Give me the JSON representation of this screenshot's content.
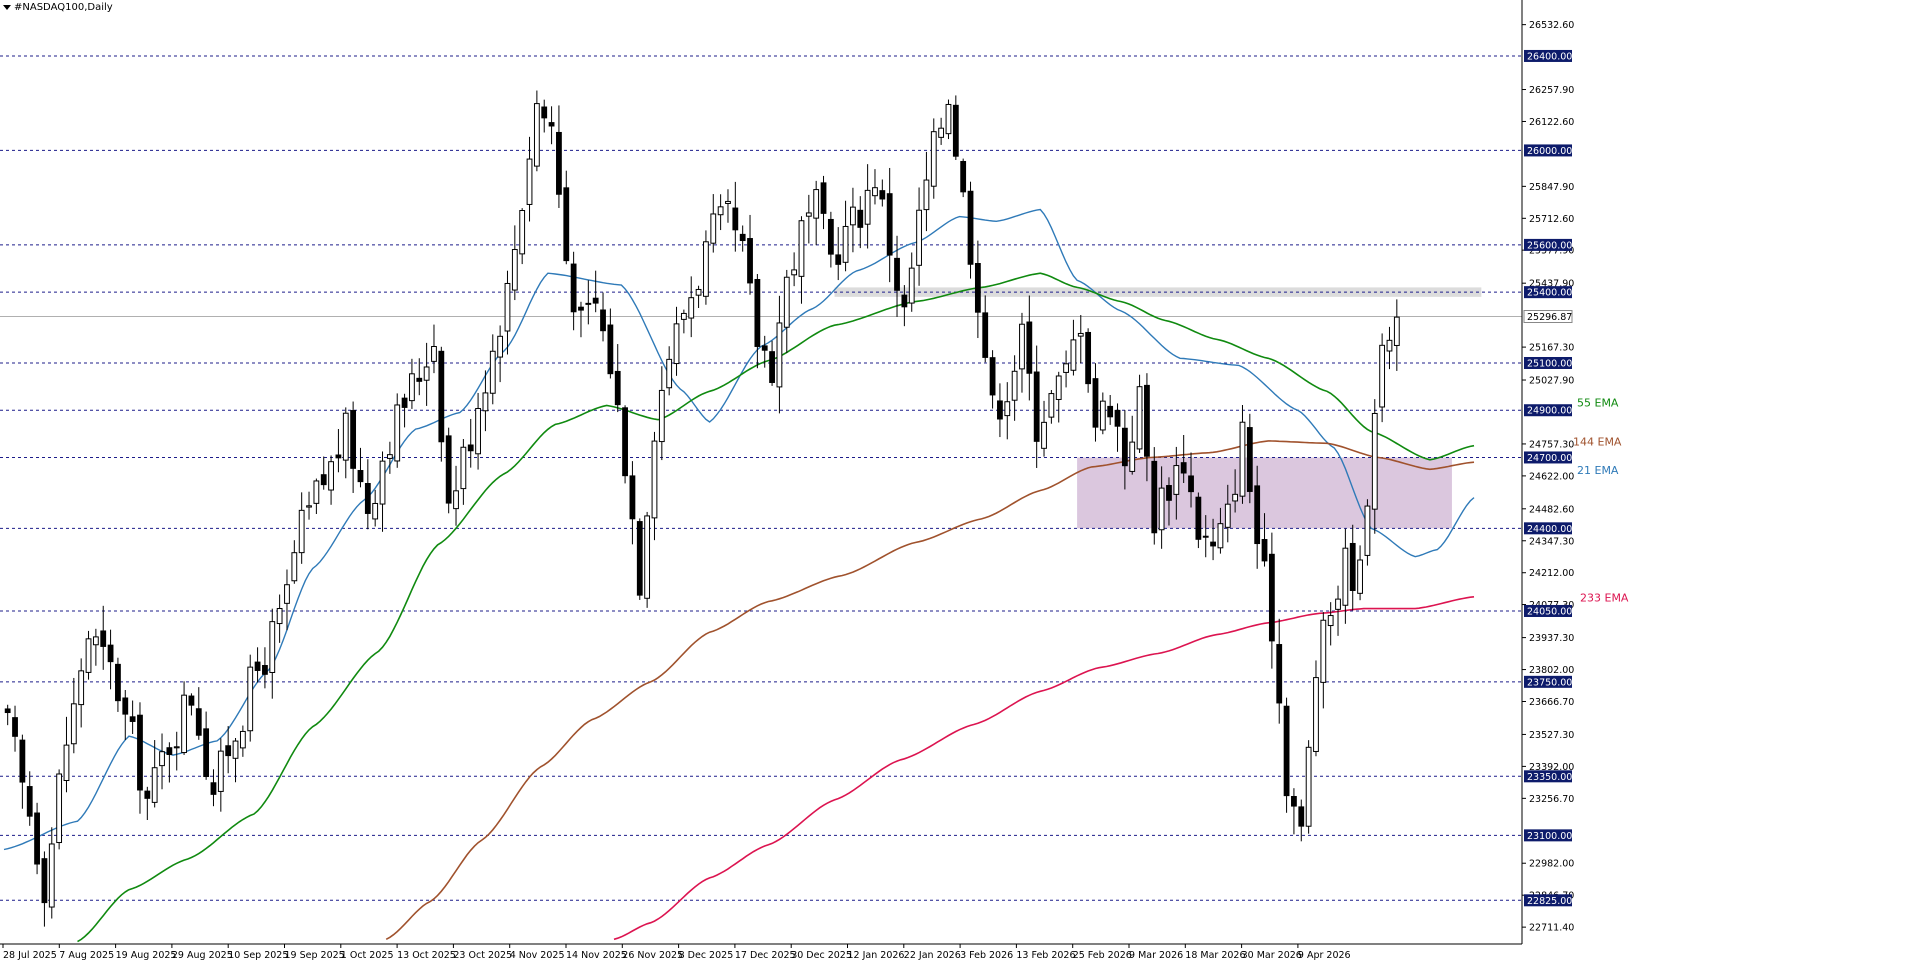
{
  "chart_title": "#NASDAQ100,Daily",
  "colors": {
    "background": "#ffffff",
    "level_line": "#1c1c8a",
    "level_label_bg": "#0d1b6b",
    "level_label_text": "#ffffff",
    "ema21": "#2f7ab8",
    "ema55": "#108a10",
    "ema144": "#a0522d",
    "ema233": "#dc1450",
    "candle_bull": "#ffffff",
    "candle_bear": "#000000",
    "zone_purple": "#d5bdd8",
    "zone_gray": "#d8d8d8",
    "axis_text": "#000000"
  },
  "chart_data": {
    "type": "candlestick",
    "symbol": "#NASDAQ100",
    "timeframe": "Daily",
    "ylim": [
      22640,
      26620
    ],
    "x_ticks": [
      "28 Jul 2025",
      "7 Aug 2025",
      "19 Aug 2025",
      "29 Aug 2025",
      "10 Sep 2025",
      "19 Sep 2025",
      "1 Oct 2025",
      "13 Oct 2025",
      "23 Oct 2025",
      "4 Nov 2025",
      "14 Nov 2025",
      "26 Nov 2025",
      "8 Dec 2025",
      "17 Dec 2025",
      "30 Dec 2025",
      "12 Jan 2026",
      "22 Jan 2026",
      "3 Feb 2026",
      "13 Feb 2026",
      "25 Feb 2026",
      "9 Mar 2026",
      "18 Mar 2026",
      "30 Mar 2026",
      "9 Apr 2026"
    ],
    "y_ticks": [
      "26532.60",
      "26257.90",
      "26122.60",
      "25847.90",
      "25712.60",
      "25577.90",
      "25437.90",
      "25167.30",
      "25027.90",
      "24757.30",
      "24622.00",
      "24482.60",
      "24347.30",
      "24212.00",
      "24077.30",
      "23937.30",
      "23802.00",
      "23666.70",
      "23527.30",
      "23392.00",
      "23256.70",
      "22982.00",
      "22846.70",
      "22711.40"
    ],
    "y_tick_values": [
      26532.6,
      26257.9,
      26122.6,
      25847.9,
      25712.6,
      25577.9,
      25437.9,
      25167.3,
      25027.9,
      24757.3,
      24622.0,
      24482.6,
      24347.3,
      24212.0,
      24077.3,
      23937.3,
      23802.0,
      23666.7,
      23527.3,
      23392.0,
      23256.7,
      22982.0,
      22846.7,
      22711.4
    ],
    "horizontal_levels": [
      {
        "label": "26400.00",
        "value": 26400
      },
      {
        "label": "26000.00",
        "value": 26000
      },
      {
        "label": "25600.00",
        "value": 25600
      },
      {
        "label": "25400.00",
        "value": 25400
      },
      {
        "label": "25100.00",
        "value": 25100
      },
      {
        "label": "24900.00",
        "value": 24900
      },
      {
        "label": "24700.00",
        "value": 24700
      },
      {
        "label": "24400.00",
        "value": 24400
      },
      {
        "label": "24050.00",
        "value": 24050
      },
      {
        "label": "23750.00",
        "value": 23750
      },
      {
        "label": "23350.00",
        "value": 23350
      },
      {
        "label": "23100.00",
        "value": 23100
      },
      {
        "label": "22825.00",
        "value": 22825
      }
    ],
    "current_price": {
      "label": "25296.87",
      "value": 25296.87
    },
    "zones": [
      {
        "name": "purple-zone",
        "bar_from": 146,
        "bar_to": 197,
        "price_from": 24400,
        "price_to": 24700
      },
      {
        "name": "gray-zone",
        "bar_from": 113,
        "bar_to": 201,
        "price_from": 25380,
        "price_to": 25420
      }
    ],
    "ema_labels": [
      {
        "text": "55 EMA",
        "value": 24915,
        "series": "ema55"
      },
      {
        "text": "144 EMA",
        "value": 24750,
        "series": "ema144"
      },
      {
        "text": "21 EMA",
        "value": 24630,
        "series": "ema21"
      },
      {
        "text": "233 EMA",
        "value": 24090,
        "series": "ema233"
      }
    ],
    "series": [
      {
        "name": "21 EMA",
        "key": "ema21",
        "anchors": [
          [
            0,
            23040
          ],
          [
            10,
            23160
          ],
          [
            17,
            23520
          ],
          [
            23,
            23440
          ],
          [
            29,
            23500
          ],
          [
            36,
            23800
          ],
          [
            42,
            24230
          ],
          [
            49,
            24520
          ],
          [
            56,
            24820
          ],
          [
            62,
            24890
          ],
          [
            68,
            25150
          ],
          [
            74,
            25480
          ],
          [
            84,
            25430
          ],
          [
            92,
            24990
          ],
          [
            96,
            24850
          ],
          [
            103,
            25170
          ],
          [
            110,
            25330
          ],
          [
            116,
            25490
          ],
          [
            124,
            25610
          ],
          [
            130,
            25720
          ],
          [
            135,
            25700
          ],
          [
            141,
            25750
          ],
          [
            146,
            25450
          ],
          [
            152,
            25320
          ],
          [
            160,
            25120
          ],
          [
            168,
            25090
          ],
          [
            176,
            24900
          ],
          [
            181,
            24740
          ],
          [
            186,
            24400
          ],
          [
            192,
            24280
          ],
          [
            195,
            24310
          ],
          [
            200,
            24530
          ]
        ]
      },
      {
        "name": "55 EMA",
        "key": "ema55",
        "anchors": [
          [
            10,
            22650
          ],
          [
            17,
            22870
          ],
          [
            25,
            23000
          ],
          [
            34,
            23190
          ],
          [
            42,
            23560
          ],
          [
            51,
            23880
          ],
          [
            59,
            24330
          ],
          [
            68,
            24630
          ],
          [
            75,
            24840
          ],
          [
            82,
            24920
          ],
          [
            89,
            24860
          ],
          [
            96,
            24980
          ],
          [
            104,
            25110
          ],
          [
            113,
            25260
          ],
          [
            124,
            25360
          ],
          [
            133,
            25420
          ],
          [
            141,
            25480
          ],
          [
            146,
            25420
          ],
          [
            152,
            25360
          ],
          [
            158,
            25280
          ],
          [
            165,
            25200
          ],
          [
            172,
            25120
          ],
          [
            180,
            24980
          ],
          [
            186,
            24810
          ],
          [
            194,
            24690
          ],
          [
            200,
            24750
          ]
        ]
      },
      {
        "name": "144 EMA",
        "key": "ema144",
        "anchors": [
          [
            52,
            22660
          ],
          [
            58,
            22820
          ],
          [
            65,
            23080
          ],
          [
            73,
            23390
          ],
          [
            80,
            23590
          ],
          [
            88,
            23750
          ],
          [
            96,
            23960
          ],
          [
            104,
            24090
          ],
          [
            114,
            24200
          ],
          [
            124,
            24340
          ],
          [
            133,
            24440
          ],
          [
            141,
            24560
          ],
          [
            148,
            24660
          ],
          [
            156,
            24700
          ],
          [
            164,
            24720
          ],
          [
            172,
            24770
          ],
          [
            180,
            24760
          ],
          [
            187,
            24700
          ],
          [
            194,
            24650
          ],
          [
            200,
            24680
          ]
        ]
      },
      {
        "name": "233 EMA",
        "key": "ema233",
        "anchors": [
          [
            83,
            22660
          ],
          [
            88,
            22730
          ],
          [
            96,
            22920
          ],
          [
            104,
            23060
          ],
          [
            113,
            23250
          ],
          [
            122,
            23420
          ],
          [
            132,
            23570
          ],
          [
            141,
            23710
          ],
          [
            149,
            23810
          ],
          [
            157,
            23870
          ],
          [
            165,
            23950
          ],
          [
            172,
            24000
          ],
          [
            179,
            24040
          ],
          [
            185,
            24060
          ],
          [
            192,
            24060
          ],
          [
            200,
            24110
          ]
        ]
      }
    ],
    "candles_note": "OHLC bars generated from anchor closes in data units",
    "close_anchors": [
      [
        0,
        23550
      ],
      [
        3,
        23200
      ],
      [
        5,
        22900
      ],
      [
        8,
        23500
      ],
      [
        11,
        23950
      ],
      [
        14,
        23800
      ],
      [
        17,
        23500
      ],
      [
        19,
        23250
      ],
      [
        22,
        23500
      ],
      [
        25,
        23700
      ],
      [
        28,
        23300
      ],
      [
        31,
        23550
      ],
      [
        34,
        23800
      ],
      [
        37,
        24000
      ],
      [
        40,
        24400
      ],
      [
        43,
        24600
      ],
      [
        46,
        24800
      ],
      [
        49,
        24500
      ],
      [
        52,
        24800
      ],
      [
        55,
        25000
      ],
      [
        58,
        25200
      ],
      [
        60,
        24500
      ],
      [
        62,
        24700
      ],
      [
        65,
        25050
      ],
      [
        68,
        25400
      ],
      [
        70,
        25800
      ],
      [
        72,
        26200
      ],
      [
        74,
        26100
      ],
      [
        76,
        25550
      ],
      [
        78,
        25250
      ],
      [
        80,
        25350
      ],
      [
        82,
        25100
      ],
      [
        84,
        24700
      ],
      [
        86,
        24200
      ],
      [
        88,
        24850
      ],
      [
        90,
        25150
      ],
      [
        93,
        25400
      ],
      [
        96,
        25650
      ],
      [
        98,
        25700
      ],
      [
        100,
        25550
      ],
      [
        102,
        25200
      ],
      [
        104,
        25100
      ],
      [
        106,
        25450
      ],
      [
        108,
        25650
      ],
      [
        110,
        25750
      ],
      [
        112,
        25550
      ],
      [
        114,
        25650
      ],
      [
        116,
        25750
      ],
      [
        118,
        25900
      ],
      [
        120,
        25600
      ],
      [
        122,
        25300
      ],
      [
        124,
        25700
      ],
      [
        126,
        26000
      ],
      [
        128,
        26250
      ],
      [
        130,
        25800
      ],
      [
        132,
        25400
      ],
      [
        134,
        24900
      ],
      [
        136,
        25000
      ],
      [
        138,
        25200
      ],
      [
        140,
        24850
      ],
      [
        142,
        24950
      ],
      [
        144,
        25050
      ],
      [
        146,
        25300
      ],
      [
        148,
        24850
      ],
      [
        150,
        24950
      ],
      [
        152,
        24700
      ],
      [
        154,
        24950
      ],
      [
        156,
        24450
      ],
      [
        158,
        24600
      ],
      [
        160,
        24700
      ],
      [
        162,
        24400
      ],
      [
        164,
        24300
      ],
      [
        166,
        24450
      ],
      [
        168,
        24800
      ],
      [
        170,
        24350
      ],
      [
        172,
        24000
      ],
      [
        174,
        23350
      ],
      [
        176,
        23100
      ],
      [
        178,
        23800
      ],
      [
        180,
        24050
      ],
      [
        182,
        24250
      ],
      [
        184,
        24200
      ],
      [
        186,
        24950
      ],
      [
        188,
        25250
      ],
      [
        189,
        25300
      ]
    ]
  }
}
